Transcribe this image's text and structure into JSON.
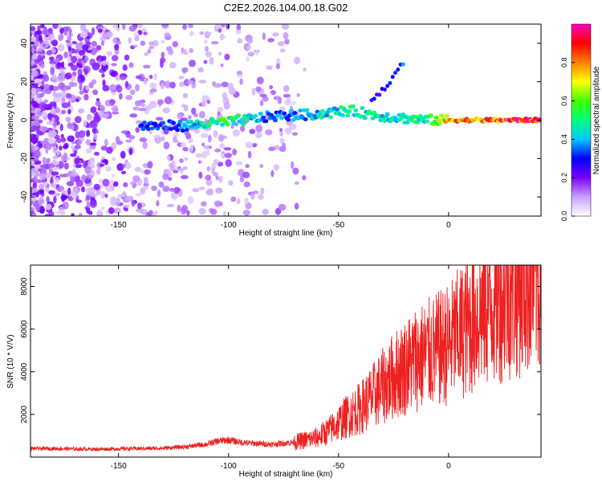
{
  "title": "C2E2.2026.104.00.18.G02",
  "chart_data": [
    {
      "type": "heatmap",
      "title": "",
      "xlabel": "Height of straight line (km)",
      "ylabel": "Frequency (Hz)",
      "xlim": [
        -190,
        42
      ],
      "ylim": [
        -50,
        50
      ],
      "xticks": [
        -150,
        -100,
        -50,
        0
      ],
      "yticks": [
        -40,
        -20,
        0,
        20,
        40
      ],
      "colorbar": {
        "label": "Normalized spectral amplitude",
        "range": [
          0,
          1
        ],
        "ticks": [
          0.0,
          0.2,
          0.4,
          0.6,
          0.8
        ],
        "tick_labels": [
          "0.0",
          "0.2",
          "0.4",
          "0.6",
          "0.8"
        ],
        "colormap": [
          "#ffffff",
          "#8000ff",
          "#0000ff",
          "#00ffff",
          "#00ff00",
          "#ffff00",
          "#ff8000",
          "#ff0000",
          "#ff00c0"
        ]
      },
      "ridge": [
        {
          "height": -140,
          "freq": -3,
          "amp": 0.3
        },
        {
          "height": -120,
          "freq": -3,
          "amp": 0.35
        },
        {
          "height": -110,
          "freq": -2,
          "amp": 0.5
        },
        {
          "height": -100,
          "freq": -1,
          "amp": 0.55
        },
        {
          "height": -80,
          "freq": 2,
          "amp": 0.35
        },
        {
          "height": -60,
          "freq": 3,
          "amp": 0.45
        },
        {
          "height": -45,
          "freq": 5,
          "amp": 0.5
        },
        {
          "height": -30,
          "freq": 2,
          "amp": 0.45
        },
        {
          "height": -20,
          "freq": 1,
          "amp": 0.45
        },
        {
          "height": -10,
          "freq": 0,
          "amp": 0.5
        },
        {
          "height": 0,
          "freq": 0,
          "amp": 0.75
        },
        {
          "height": 10,
          "freq": 0,
          "amp": 0.8
        },
        {
          "height": 20,
          "freq": 0,
          "amp": 0.9
        },
        {
          "height": 42,
          "freq": 0,
          "amp": 0.95
        }
      ],
      "spur": [
        {
          "height": -35,
          "freq": 10,
          "amp": 0.3
        },
        {
          "height": -28,
          "freq": 18,
          "amp": 0.3
        },
        {
          "height": -20,
          "freq": 31,
          "amp": 0.4
        }
      ]
    },
    {
      "type": "line",
      "title": "",
      "xlabel": "Height of straight line (km)",
      "ylabel": "SNR (10 * V/V)",
      "xlim": [
        -190,
        42
      ],
      "ylim": [
        0,
        9000
      ],
      "xticks": [
        -150,
        -100,
        -50,
        0
      ],
      "yticks": [
        2000,
        4000,
        6000,
        8000
      ],
      "color": "#ee2020",
      "series": [
        {
          "name": "SNR",
          "x": [
            -190,
            -180,
            -170,
            -160,
            -150,
            -140,
            -130,
            -120,
            -110,
            -105,
            -100,
            -95,
            -90,
            -85,
            -80,
            -70,
            -60,
            -55,
            -50,
            -45,
            -40,
            -35,
            -30,
            -25,
            -20,
            -15,
            -10,
            -5,
            0,
            5,
            10,
            15,
            20,
            25,
            30,
            35,
            40,
            42
          ],
          "values": [
            400,
            400,
            380,
            370,
            390,
            400,
            420,
            480,
            600,
            750,
            800,
            700,
            650,
            620,
            600,
            700,
            900,
            1200,
            1600,
            2000,
            2300,
            2800,
            3300,
            3800,
            4200,
            4600,
            4800,
            5000,
            5300,
            5800,
            6300,
            6900,
            7300,
            7700,
            8000,
            8300,
            8500,
            8400
          ]
        }
      ]
    }
  ]
}
